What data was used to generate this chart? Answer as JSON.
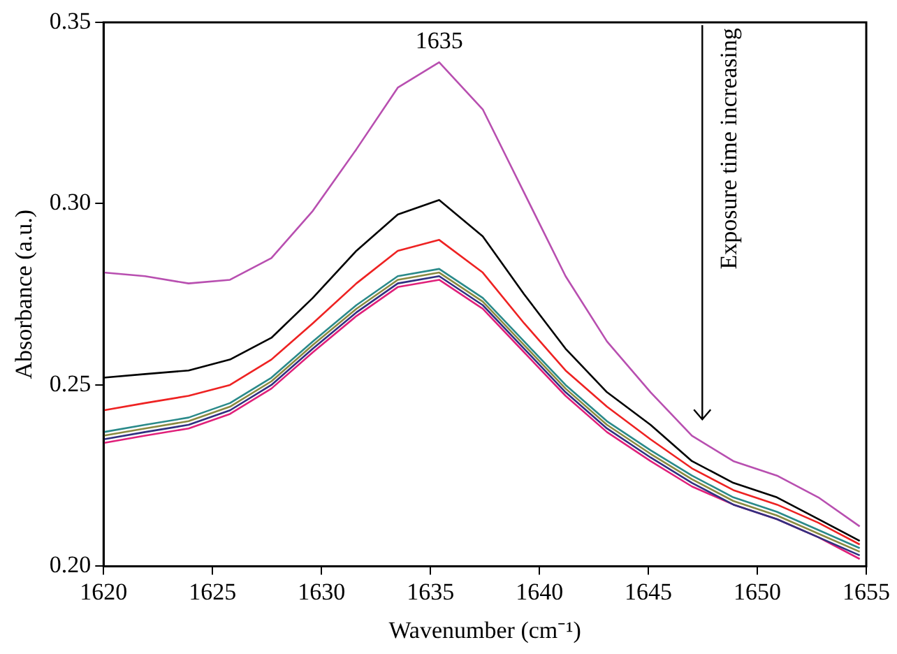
{
  "chart_data": {
    "type": "line",
    "xlabel": "Wavenumber (cm⁻¹)",
    "ylabel": "Absorbance (a.u.)",
    "x": [
      1620,
      1621.9,
      1623.9,
      1625.8,
      1627.7,
      1629.6,
      1631.6,
      1633.5,
      1635.4,
      1637.4,
      1639.3,
      1641.2,
      1643.1,
      1645.1,
      1647,
      1648.9,
      1650.9,
      1652.8,
      1654.7
    ],
    "series": [
      {
        "color": "#b84fb0",
        "values": [
          0.281,
          0.28,
          0.278,
          0.279,
          0.285,
          0.298,
          0.315,
          0.332,
          0.339,
          0.326,
          0.303,
          0.28,
          0.262,
          0.248,
          0.236,
          0.229,
          0.225,
          0.219,
          0.211
        ]
      },
      {
        "color": "#000000",
        "values": [
          0.252,
          0.253,
          0.254,
          0.257,
          0.263,
          0.274,
          0.287,
          0.297,
          0.301,
          0.291,
          0.275,
          0.26,
          0.248,
          0.239,
          0.229,
          0.223,
          0.219,
          0.213,
          0.207
        ]
      },
      {
        "color": "#ee2222",
        "values": [
          0.243,
          0.245,
          0.247,
          0.25,
          0.257,
          0.267,
          0.278,
          0.287,
          0.29,
          0.281,
          0.267,
          0.254,
          0.244,
          0.235,
          0.227,
          0.221,
          0.217,
          0.212,
          0.206
        ]
      },
      {
        "color": "#2a8a8a",
        "values": [
          0.237,
          0.239,
          0.241,
          0.245,
          0.252,
          0.262,
          0.272,
          0.28,
          0.282,
          0.274,
          0.262,
          0.25,
          0.24,
          0.232,
          0.225,
          0.219,
          0.215,
          0.21,
          0.205
        ]
      },
      {
        "color": "#8a8a40",
        "values": [
          0.236,
          0.238,
          0.24,
          0.244,
          0.251,
          0.261,
          0.271,
          0.279,
          0.281,
          0.273,
          0.261,
          0.249,
          0.239,
          0.231,
          0.224,
          0.218,
          0.214,
          0.209,
          0.204
        ]
      },
      {
        "color": "#303080",
        "values": [
          0.235,
          0.237,
          0.239,
          0.243,
          0.25,
          0.26,
          0.27,
          0.278,
          0.28,
          0.272,
          0.26,
          0.248,
          0.238,
          0.23,
          0.223,
          0.217,
          0.213,
          0.208,
          0.203
        ]
      },
      {
        "color": "#e0207a",
        "values": [
          0.234,
          0.236,
          0.238,
          0.242,
          0.249,
          0.259,
          0.269,
          0.277,
          0.279,
          0.271,
          0.259,
          0.247,
          0.237,
          0.229,
          0.222,
          0.217,
          0.213,
          0.208,
          0.202
        ]
      }
    ],
    "xlim": [
      1620,
      1655
    ],
    "xticks": [
      1620,
      1625,
      1630,
      1635,
      1640,
      1645,
      1650,
      1655
    ],
    "ylim": [
      0.2,
      0.35
    ],
    "yticks": [
      {
        "value": 0.2,
        "label": "0.20"
      },
      {
        "value": 0.25,
        "label": "0.25"
      },
      {
        "value": 0.3,
        "label": "0.30"
      },
      {
        "value": 0.35,
        "label": "0.35"
      }
    ],
    "annotations": [
      {
        "text": "1635",
        "x": 1635.4,
        "y": 0.339
      },
      "Exposure time increasing"
    ],
    "grid": false,
    "legend": false,
    "marker": "none",
    "line_style": "solid"
  }
}
